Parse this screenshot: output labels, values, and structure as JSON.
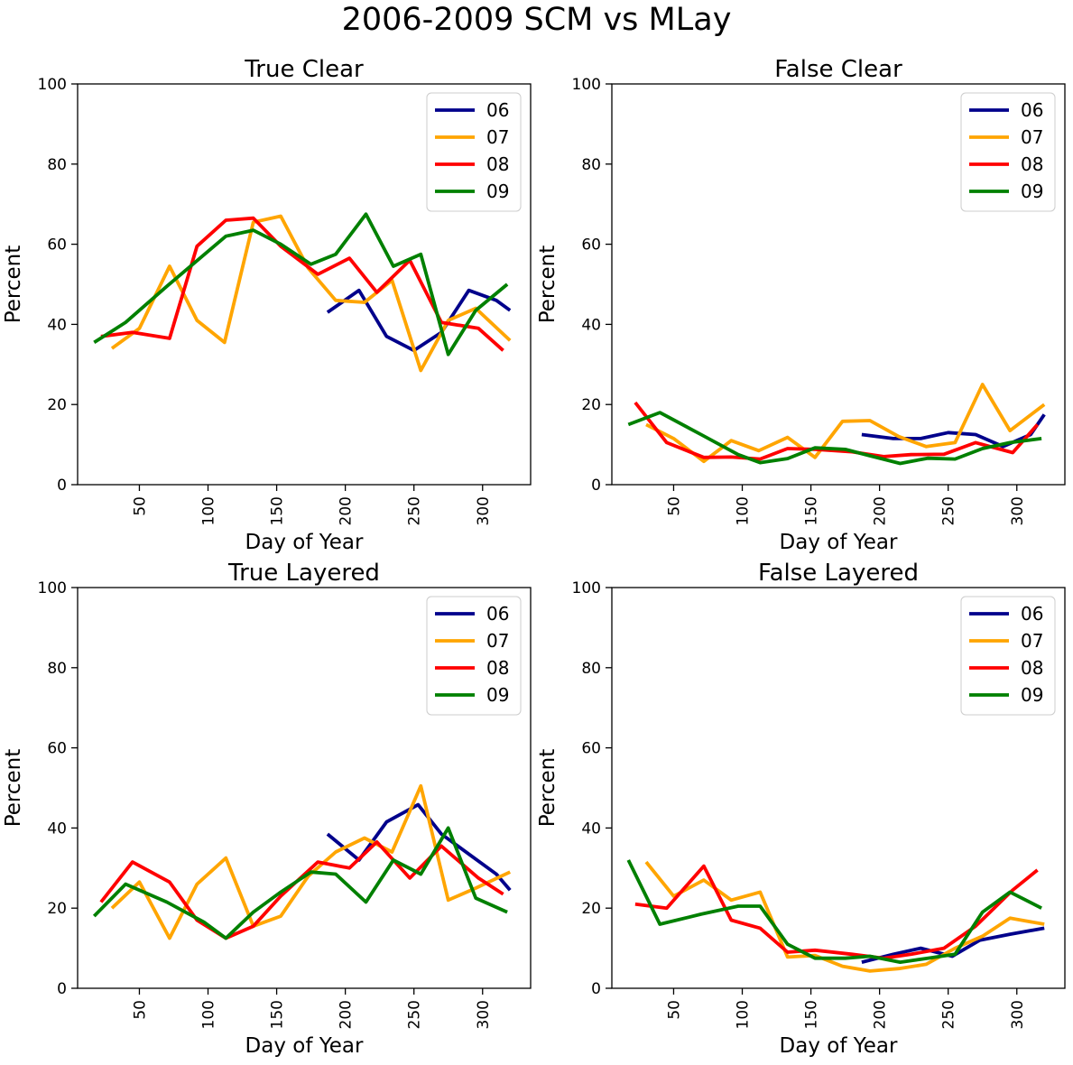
{
  "figure": {
    "suptitle": "2006-2009 SCM vs MLay"
  },
  "colors": {
    "06": "#00008b",
    "07": "#ffa500",
    "08": "#ff0000",
    "09": "#008000",
    "axes": "#000000"
  },
  "chart_data": [
    {
      "type": "line",
      "title": "True Clear",
      "xlabel": "Day of Year",
      "ylabel": "Percent",
      "xlim": [
        5,
        335
      ],
      "ylim": [
        0,
        100
      ],
      "xticks": [
        50,
        100,
        150,
        200,
        250,
        300
      ],
      "yticks": [
        0,
        20,
        40,
        60,
        80,
        100
      ],
      "legend": "top-right",
      "grid": false,
      "series": [
        {
          "name": "06",
          "color": "#00008b",
          "x": [
            187,
            210,
            230,
            250,
            270,
            290,
            310,
            320
          ],
          "y": [
            43,
            48.5,
            37,
            33.5,
            38,
            48.5,
            46,
            43.5
          ]
        },
        {
          "name": "07",
          "color": "#ffa500",
          "x": [
            30,
            50,
            72,
            92,
            112,
            133,
            153,
            173,
            193,
            214,
            234,
            255,
            275,
            295,
            320
          ],
          "y": [
            34,
            39,
            54.5,
            41,
            35.5,
            65.5,
            67,
            54,
            46,
            45.5,
            51,
            28.5,
            41,
            44,
            36
          ]
        },
        {
          "name": "08",
          "color": "#ff0000",
          "x": [
            22,
            45,
            72,
            92,
            113,
            133,
            153,
            180,
            203,
            223,
            247,
            270,
            297,
            315
          ],
          "y": [
            37,
            38,
            36.5,
            59.5,
            66,
            66.5,
            59.5,
            52.5,
            56.5,
            48,
            56,
            40.5,
            39,
            33.5
          ]
        },
        {
          "name": "09",
          "color": "#008000",
          "x": [
            17,
            40,
            70,
            113,
            133,
            153,
            175,
            193,
            215,
            235,
            255,
            275,
            295,
            318
          ],
          "y": [
            35.5,
            40.5,
            49.5,
            62,
            63.5,
            60,
            55,
            57.5,
            67.5,
            54.5,
            57.5,
            32.5,
            43.5,
            50
          ]
        }
      ]
    },
    {
      "type": "line",
      "title": "False Clear",
      "xlabel": "Day of Year",
      "ylabel": "Percent",
      "xlim": [
        5,
        335
      ],
      "ylim": [
        0,
        100
      ],
      "xticks": [
        50,
        100,
        150,
        200,
        250,
        300
      ],
      "yticks": [
        0,
        20,
        40,
        60,
        80,
        100
      ],
      "legend": "top-right",
      "grid": false,
      "series": [
        {
          "name": "06",
          "color": "#00008b",
          "x": [
            187,
            210,
            230,
            250,
            270,
            290,
            310,
            320
          ],
          "y": [
            12.5,
            11.5,
            11.5,
            13,
            12.5,
            9.5,
            12.5,
            17.5
          ]
        },
        {
          "name": "07",
          "color": "#ffa500",
          "x": [
            30,
            50,
            72,
            92,
            112,
            133,
            153,
            173,
            193,
            214,
            234,
            255,
            275,
            295,
            320
          ],
          "y": [
            15,
            11.5,
            5.8,
            11,
            8.5,
            11.8,
            6.8,
            15.8,
            16,
            12,
            9.5,
            10.5,
            25,
            13.5,
            20
          ]
        },
        {
          "name": "08",
          "color": "#ff0000",
          "x": [
            22,
            45,
            72,
            92,
            113,
            133,
            153,
            180,
            203,
            223,
            247,
            270,
            297,
            315
          ],
          "y": [
            20.5,
            10.5,
            6.8,
            6.9,
            6.4,
            9,
            8.8,
            8.2,
            7,
            7.5,
            7.6,
            10.5,
            8,
            15
          ]
        },
        {
          "name": "09",
          "color": "#008000",
          "x": [
            17,
            40,
            70,
            97,
            113,
            133,
            153,
            175,
            193,
            215,
            235,
            255,
            275,
            295,
            318
          ],
          "y": [
            15,
            18,
            12.5,
            7.5,
            5.5,
            6.5,
            9.2,
            8.8,
            7.2,
            5.3,
            6.6,
            6.4,
            9,
            10.5,
            11.5
          ]
        }
      ]
    },
    {
      "type": "line",
      "title": "True Layered",
      "xlabel": "Day of Year",
      "ylabel": "Percent",
      "xlim": [
        5,
        335
      ],
      "ylim": [
        0,
        100
      ],
      "xticks": [
        50,
        100,
        150,
        200,
        250,
        300
      ],
      "yticks": [
        0,
        20,
        40,
        60,
        80,
        100
      ],
      "legend": "top-right",
      "grid": false,
      "series": [
        {
          "name": "06",
          "color": "#00008b",
          "x": [
            187,
            210,
            230,
            253,
            270,
            290,
            310,
            320
          ],
          "y": [
            38.5,
            32,
            41.5,
            45.8,
            38.5,
            33.5,
            28.5,
            24.5
          ]
        },
        {
          "name": "07",
          "color": "#ffa500",
          "x": [
            30,
            50,
            72,
            92,
            113,
            133,
            153,
            173,
            193,
            214,
            234,
            255,
            275,
            295,
            320
          ],
          "y": [
            20,
            26.5,
            12.5,
            26,
            32.5,
            15.5,
            18,
            28,
            34,
            37.5,
            34,
            50.5,
            22,
            25,
            29
          ]
        },
        {
          "name": "08",
          "color": "#ff0000",
          "x": [
            22,
            45,
            72,
            92,
            113,
            133,
            153,
            180,
            203,
            223,
            247,
            270,
            297,
            315
          ],
          "y": [
            21.5,
            31.5,
            26.5,
            17,
            12.5,
            15.5,
            23,
            31.5,
            30,
            36.5,
            27.5,
            35.5,
            27.5,
            23.5
          ]
        },
        {
          "name": "09",
          "color": "#008000",
          "x": [
            17,
            40,
            70,
            97,
            113,
            133,
            153,
            175,
            193,
            215,
            235,
            255,
            275,
            295,
            318
          ],
          "y": [
            18,
            26,
            21.5,
            16.5,
            12.5,
            19,
            24,
            29,
            28.5,
            21.5,
            32,
            28.5,
            40,
            22.5,
            19
          ]
        }
      ]
    },
    {
      "type": "line",
      "title": "False Layered",
      "xlabel": "Day of Year",
      "ylabel": "Percent",
      "xlim": [
        5,
        335
      ],
      "ylim": [
        0,
        100
      ],
      "xticks": [
        50,
        100,
        150,
        200,
        250,
        300
      ],
      "yticks": [
        0,
        20,
        40,
        60,
        80,
        100
      ],
      "legend": "top-right",
      "grid": false,
      "series": [
        {
          "name": "06",
          "color": "#00008b",
          "x": [
            187,
            210,
            230,
            253,
            273,
            295,
            320
          ],
          "y": [
            6.5,
            8.5,
            10,
            8,
            12,
            13.5,
            15
          ]
        },
        {
          "name": "07",
          "color": "#ffa500",
          "x": [
            30,
            50,
            72,
            92,
            113,
            133,
            153,
            173,
            193,
            214,
            234,
            255,
            275,
            295,
            320
          ],
          "y": [
            31.5,
            23,
            27,
            22,
            24,
            7.8,
            8.2,
            5.5,
            4.3,
            4.9,
            6,
            10,
            13,
            17.5,
            16
          ]
        },
        {
          "name": "08",
          "color": "#ff0000",
          "x": [
            22,
            45,
            72,
            92,
            113,
            133,
            153,
            180,
            203,
            223,
            247,
            270,
            297,
            315
          ],
          "y": [
            21,
            20,
            30.5,
            17,
            15,
            9,
            9.5,
            8.5,
            7.5,
            8.5,
            10,
            15.5,
            24.5,
            29.5
          ]
        },
        {
          "name": "09",
          "color": "#008000",
          "x": [
            17,
            40,
            70,
            97,
            113,
            133,
            153,
            175,
            193,
            215,
            235,
            255,
            275,
            295,
            318
          ],
          "y": [
            32,
            16,
            18.5,
            20.5,
            20.5,
            11,
            7.5,
            7.5,
            8,
            6.5,
            7.5,
            8.5,
            19,
            24,
            20
          ]
        }
      ]
    }
  ]
}
